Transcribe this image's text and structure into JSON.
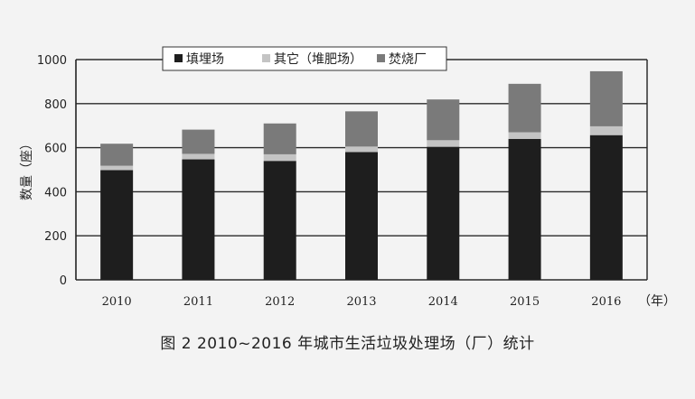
{
  "caption": "图 2 2010~2016 年城市生活垃圾处理场（厂）统计",
  "chart_data": {
    "type": "bar",
    "stacked": true,
    "categories": [
      "2010",
      "2011",
      "2012",
      "2013",
      "2014",
      "2015",
      "2016"
    ],
    "series": [
      {
        "name": "填埋场",
        "color": "#1e1e1e",
        "values": [
          498,
          547,
          540,
          580,
          604,
          640,
          657
        ]
      },
      {
        "name": "其它（堆肥场）",
        "color": "#c4c4c4",
        "values": [
          20,
          25,
          30,
          25,
          30,
          30,
          40
        ]
      },
      {
        "name": "焚烧厂",
        "color": "#7a7a7a",
        "values": [
          100,
          110,
          140,
          160,
          185,
          220,
          250
        ]
      }
    ],
    "ylabel": "数量（座）",
    "xlabel_unit": "（年）",
    "ylim": [
      0,
      1000
    ],
    "yticks": [
      0,
      200,
      400,
      600,
      800,
      1000
    ],
    "grid": true,
    "legend_position": "top"
  }
}
